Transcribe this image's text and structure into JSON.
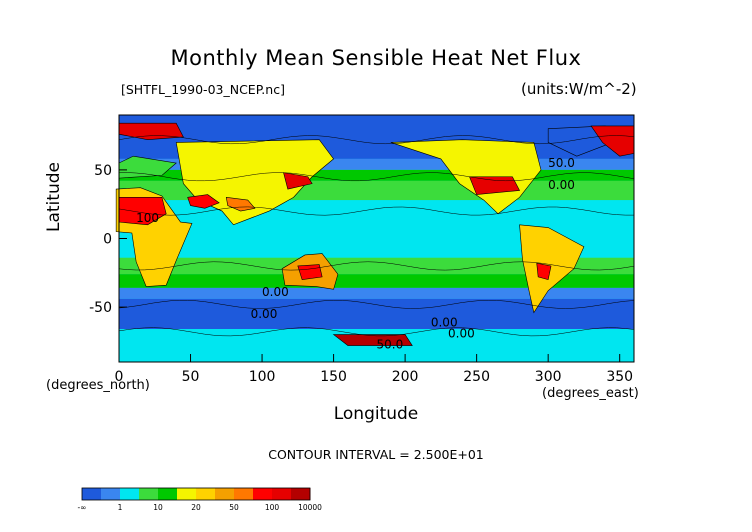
{
  "chart_data": {
    "type": "heatmap",
    "title": "Monthly Mean Sensible Heat Net Flux",
    "file_label": "[SHTFL_1990-03_NCEP.nc]",
    "units_label": "(units:W/m^-2)",
    "xlabel": "Longitude",
    "ylabel": "Latitude",
    "x_unit": "(degrees_east)",
    "y_unit": "(degrees_north)",
    "xlim": [
      0,
      360
    ],
    "ylim": [
      -90,
      90
    ],
    "x_ticks": [
      "0",
      "50",
      "100",
      "150",
      "200",
      "250",
      "300",
      "350"
    ],
    "y_ticks": [
      "50",
      "0",
      "-50"
    ],
    "contour_interval_label": "CONTOUR INTERVAL = 2.500E+01",
    "contour_labels": [
      "0.00",
      "0.00",
      "0.00",
      "0.00",
      "100",
      "50.0",
      "0.00",
      "50.0"
    ],
    "colorbar": {
      "labels": [
        "-∞",
        "1",
        "10",
        "20",
        "50",
        "100",
        "10000"
      ],
      "colors": [
        "#1e5adc",
        "#3a86f0",
        "#00e6f0",
        "#3cdc3c",
        "#00c800",
        "#f5f500",
        "#ffd200",
        "#f5a000",
        "#ff7800",
        "#ff0000",
        "#e60000",
        "#b40000"
      ]
    }
  }
}
